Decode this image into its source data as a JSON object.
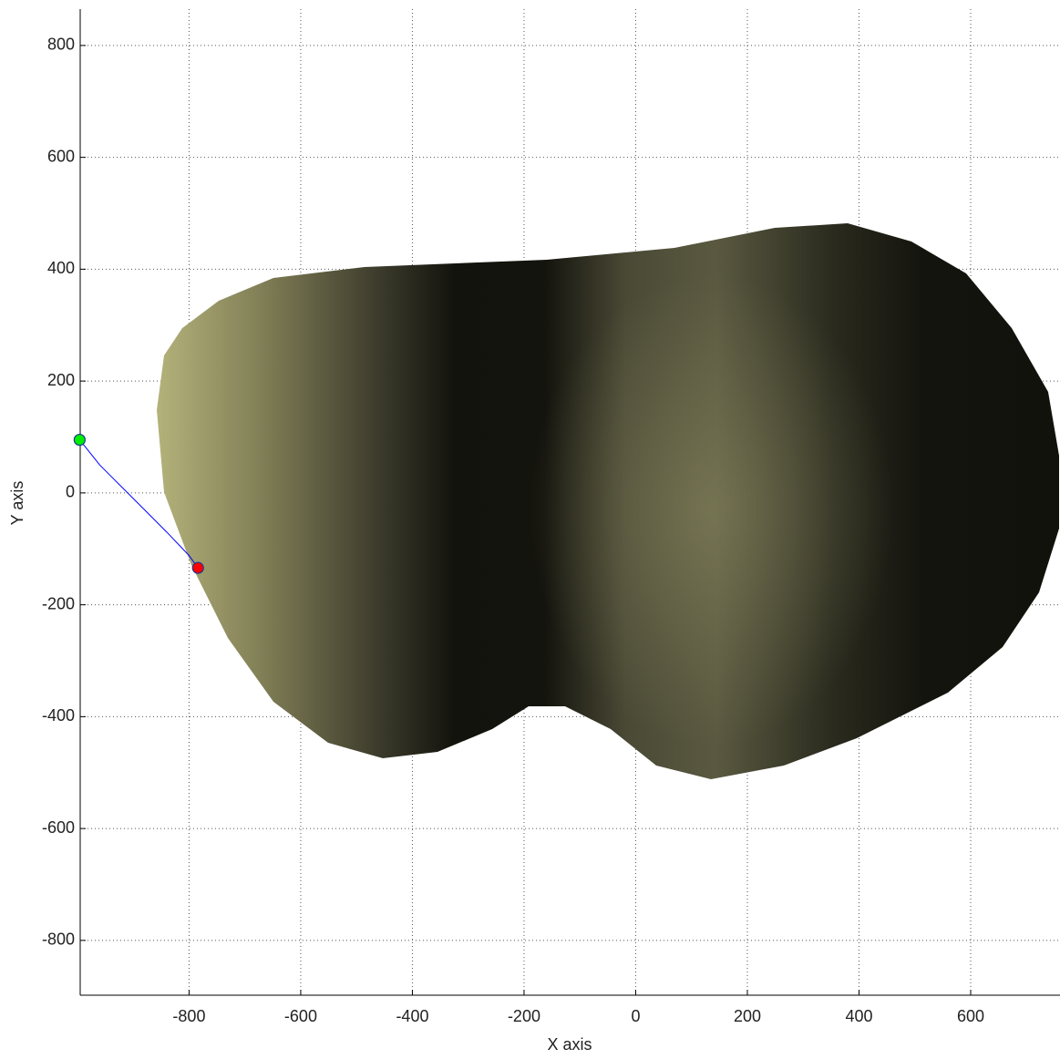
{
  "chart_data": {
    "type": "line",
    "x_label": "X axis",
    "y_label": "Y axis",
    "xlim": [
      -995,
      760
    ],
    "ylim": [
      -898,
      865
    ],
    "xticks": [
      -800,
      -600,
      -400,
      -200,
      0,
      200,
      400,
      600
    ],
    "yticks": [
      -800,
      -600,
      -400,
      -200,
      0,
      200,
      400,
      600,
      800
    ],
    "grid": true,
    "series": [
      {
        "color": "#0000ff",
        "x": [
          -996,
          -960,
          -920,
          -880,
          -840,
          -800,
          -784
        ],
        "y": [
          95,
          50,
          10,
          -30,
          -70,
          -112,
          -134
        ]
      }
    ],
    "points": [
      {
        "color": "#00ee00",
        "x": -996,
        "y": 95
      },
      {
        "color": "#ff0000",
        "x": -784,
        "y": -134
      }
    ]
  }
}
